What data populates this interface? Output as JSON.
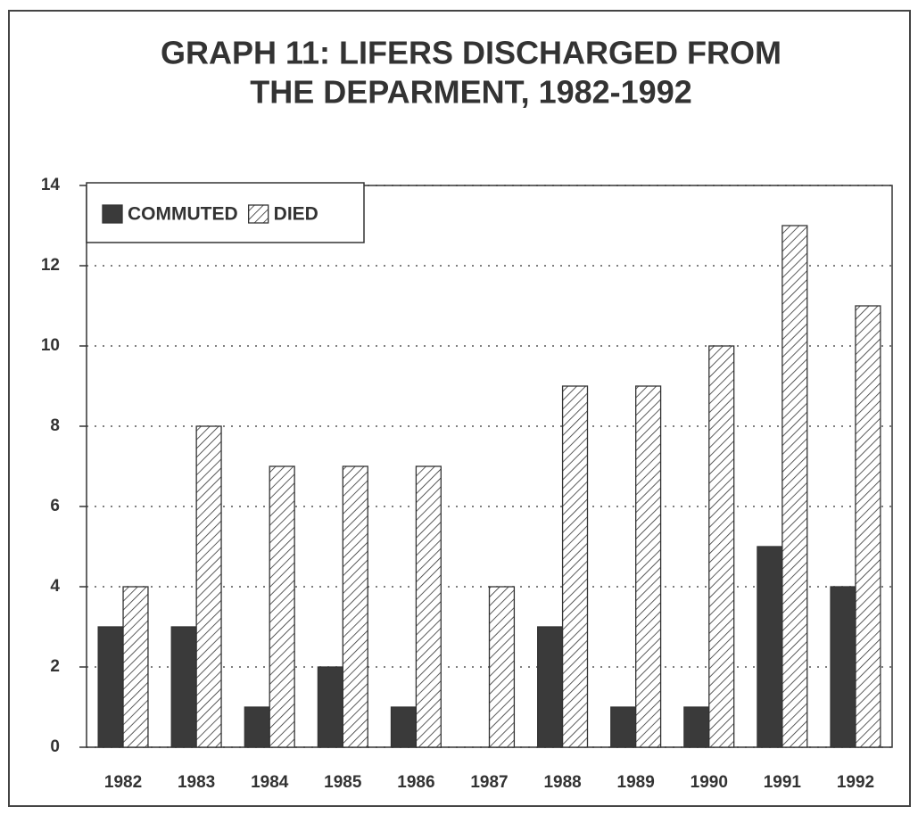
{
  "chart_data": {
    "type": "bar",
    "title": [
      "GRAPH 11: LIFERS DISCHARGED FROM",
      "THE DEPARMENT, 1982-1992"
    ],
    "categories": [
      "1982",
      "1983",
      "1984",
      "1985",
      "1986",
      "1987",
      "1988",
      "1989",
      "1990",
      "1991",
      "1992"
    ],
    "series": [
      {
        "name": "COMMUTED",
        "color": "#3a3a3a",
        "pattern": "solid",
        "values": [
          3,
          3,
          1,
          2,
          1,
          0,
          3,
          1,
          1,
          5,
          4
        ]
      },
      {
        "name": "DIED",
        "color": "#333333",
        "pattern": "hatch",
        "values": [
          4,
          8,
          7,
          7,
          7,
          4,
          9,
          9,
          10,
          13,
          11
        ]
      }
    ],
    "ylim": [
      0,
      14
    ],
    "yticks": [
      0,
      2,
      4,
      6,
      8,
      10,
      12,
      14
    ],
    "grid": true,
    "legend": "top-left"
  }
}
